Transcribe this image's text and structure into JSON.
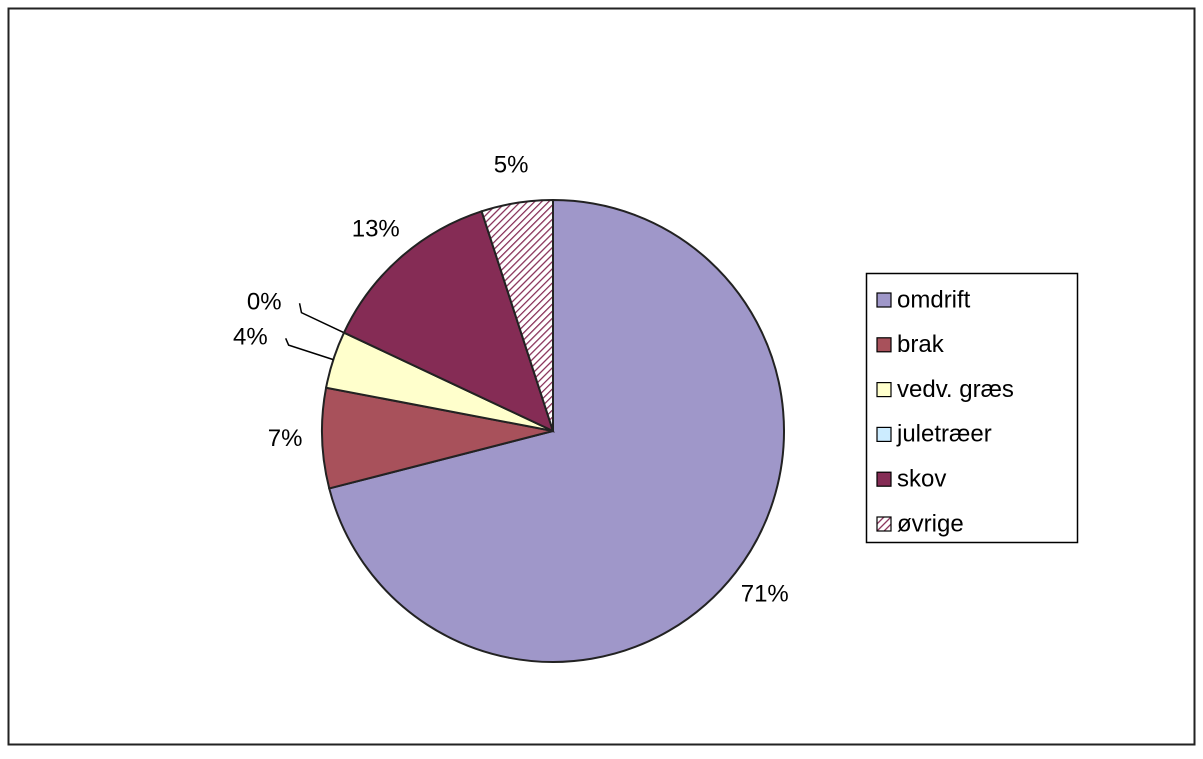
{
  "chart_data": {
    "type": "pie",
    "categories": [
      "omdrift",
      "brak",
      "vedv. græs",
      "juletræer",
      "skov",
      "øvrige"
    ],
    "values": [
      71,
      7,
      4,
      0,
      13,
      5
    ],
    "value_labels": [
      "71%",
      "7%",
      "4%",
      "0%",
      "13%",
      "5%"
    ],
    "colors": [
      "#9f97c9",
      "#a8515b",
      "#ffffcc",
      "#ccecff",
      "#852c55",
      "#852c55"
    ],
    "hatch": [
      false,
      false,
      false,
      false,
      false,
      true
    ],
    "legend": "right"
  }
}
